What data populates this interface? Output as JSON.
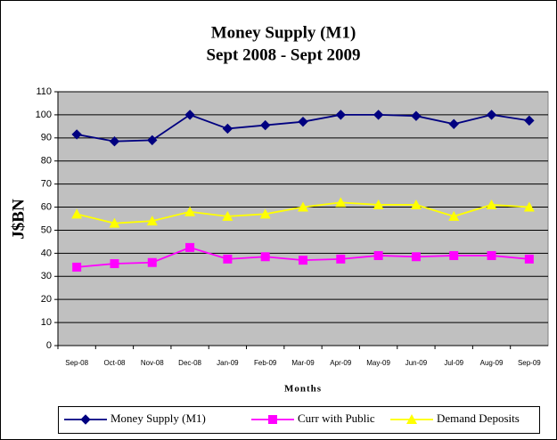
{
  "chart_data": {
    "type": "line",
    "title": "Money Supply (M1)",
    "subtitle": "Sept 2008 - Sept 2009",
    "y_label": "J$BN",
    "x_label": "Months",
    "categories": [
      "Sep-08",
      "Oct-08",
      "Nov-08",
      "Dec-08",
      "Jan-09",
      "Feb-09",
      "Mar-09",
      "Apr-09",
      "May-09",
      "Jun-09",
      "Jul-09",
      "Aug-09",
      "Sep-09"
    ],
    "series": [
      {
        "name": "Money Supply (M1)",
        "color": "#000080",
        "marker": "diamond",
        "values": [
          91.5,
          88.5,
          89,
          100,
          94,
          95.5,
          97,
          100,
          100,
          99.5,
          96,
          100,
          97.5
        ]
      },
      {
        "name": "Curr with Public",
        "color": "#ff00ff",
        "marker": "square",
        "values": [
          34,
          35.5,
          36,
          42.5,
          37.5,
          38.5,
          37,
          37.5,
          39,
          38.5,
          39,
          39,
          37.5
        ]
      },
      {
        "name": "Demand Deposits",
        "color": "#ffff00",
        "marker": "triangle",
        "values": [
          57,
          53,
          54,
          58,
          56,
          57,
          60,
          62,
          61,
          61,
          56,
          61,
          60
        ]
      }
    ],
    "ylim": [
      0,
      110
    ],
    "yticks": [
      0,
      10,
      20,
      30,
      40,
      50,
      60,
      70,
      80,
      90,
      100,
      110
    ],
    "grid": true,
    "plot_background": "#c0c0c0",
    "legend": "bottom"
  }
}
